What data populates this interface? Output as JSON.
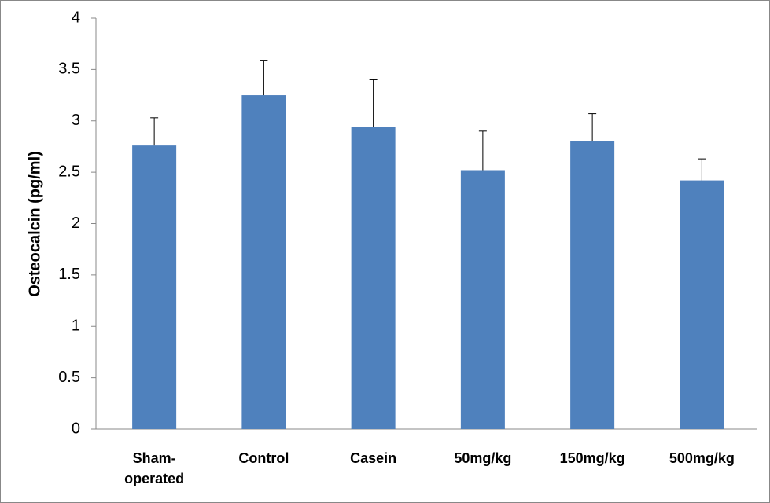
{
  "chart_data": {
    "type": "bar",
    "y_label": "Osteocalcin (pg/ml)",
    "categories": [
      "Sham-operated",
      "Control",
      "Casein",
      "50mg/kg",
      "150mg/kg",
      "500mg/kg"
    ],
    "values": [
      2.76,
      3.25,
      2.94,
      2.52,
      2.8,
      2.42
    ],
    "errors": [
      0.27,
      0.34,
      0.46,
      0.38,
      0.27,
      0.21
    ],
    "color": "#4f81bd",
    "ylim": [
      0,
      4
    ],
    "yticks": [
      0,
      0.5,
      1,
      1.5,
      2,
      2.5,
      3,
      3.5,
      4
    ]
  }
}
